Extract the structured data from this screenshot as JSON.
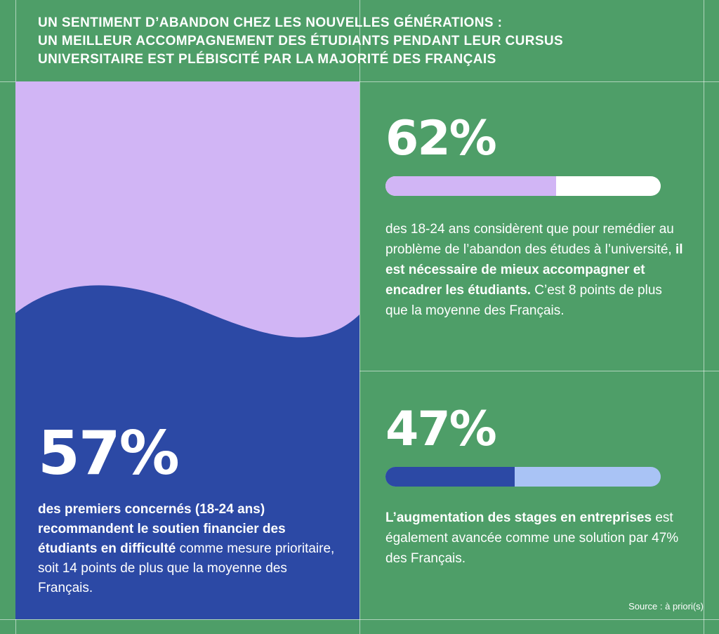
{
  "header": {
    "line1": "UN SENTIMENT D’ABANDON CHEZ LES NOUVELLES GÉNÉRATIONS :",
    "line2": "UN MEILLEUR ACCOMPAGNEMENT DES ÉTUDIANTS PENDANT LEUR CURSUS",
    "line3": "UNIVERSITAIRE EST PLÉBISCITÉ PAR LA MAJORITÉ DES FRANÇAIS"
  },
  "left_stat": {
    "value": "57%",
    "text_bold": "des premiers concernés (18-24 ans) recommandent le soutien financier des étudiants en difficulté",
    "text_rest": " comme mesure prioritaire, soit 14 points de plus que la moyenne des Français."
  },
  "stat_top": {
    "value": "62%",
    "bar_fraction": 0.62,
    "text_part1": "des 18-24 ans considèrent que pour remédier au problème de l’abandon des études à l’université, ",
    "text_bold": "il est nécessaire de mieux accompagner et encadrer les étudiants.",
    "text_part2": " C’est 8 points de plus que la moyenne des Français."
  },
  "stat_bottom": {
    "value": "47%",
    "bar_fraction": 0.47,
    "text_bold": "L’augmentation des stages en entreprises",
    "text_rest": " est également avancée comme une solution par 47% des Français."
  },
  "source": "Source : à priori(s)",
  "colors": {
    "background": "#4e9e68",
    "lavender": "#d1b5f5",
    "blue": "#2c49a5",
    "light_blue": "#a9c3f5",
    "white": "#ffffff"
  }
}
